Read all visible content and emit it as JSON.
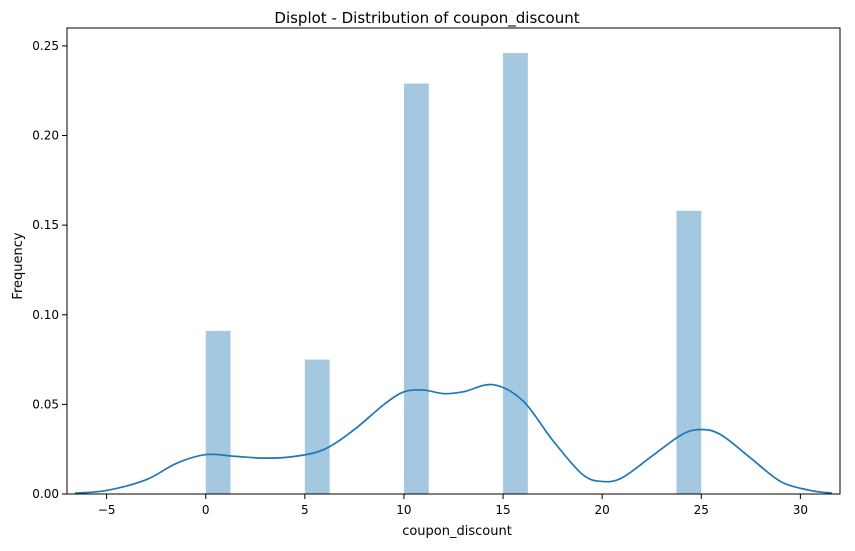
{
  "chart_data": {
    "type": "bar",
    "title": "Displot - Distribution of coupon_discount",
    "xlabel": "coupon_discount",
    "ylabel": "Frequency",
    "xlim": [
      -7.0,
      32.0
    ],
    "ylim": [
      0,
      0.26
    ],
    "x_ticks": [
      -5,
      0,
      5,
      10,
      15,
      20,
      25,
      30
    ],
    "x_tick_labels": [
      "−5",
      "0",
      "5",
      "10",
      "15",
      "20",
      "25",
      "30"
    ],
    "y_ticks": [
      0.0,
      0.05,
      0.1,
      0.15,
      0.2,
      0.25
    ],
    "y_tick_labels": [
      "0.00",
      "0.05",
      "0.10",
      "0.15",
      "0.20",
      "0.25"
    ],
    "grid": false,
    "legend": false,
    "colors": {
      "bar": "#a4c8e0",
      "kde": "#1f77b4",
      "axis": "#000000"
    },
    "histogram": {
      "bins": [
        {
          "x0": 0.0,
          "x1": 1.25,
          "value": 0.091
        },
        {
          "x0": 5.0,
          "x1": 6.25,
          "value": 0.075
        },
        {
          "x0": 10.0,
          "x1": 11.25,
          "value": 0.229
        },
        {
          "x0": 15.0,
          "x1": 16.25,
          "value": 0.246
        },
        {
          "x0": 23.75,
          "x1": 25.0,
          "value": 0.158
        }
      ]
    },
    "kde": {
      "x": [
        -6.6,
        -5.0,
        -3.0,
        -1.5,
        0.0,
        1.5,
        3.0,
        4.5,
        6.0,
        7.5,
        9.0,
        10.0,
        11.0,
        12.0,
        13.0,
        14.5,
        16.0,
        17.5,
        19.0,
        20.0,
        21.0,
        22.5,
        24.0,
        25.0,
        26.0,
        27.5,
        29.0,
        30.5,
        31.6
      ],
      "y": [
        0.0005,
        0.002,
        0.008,
        0.017,
        0.022,
        0.021,
        0.02,
        0.021,
        0.025,
        0.036,
        0.05,
        0.057,
        0.058,
        0.056,
        0.057,
        0.061,
        0.052,
        0.03,
        0.011,
        0.007,
        0.009,
        0.021,
        0.033,
        0.036,
        0.033,
        0.02,
        0.007,
        0.002,
        0.0005
      ]
    }
  }
}
